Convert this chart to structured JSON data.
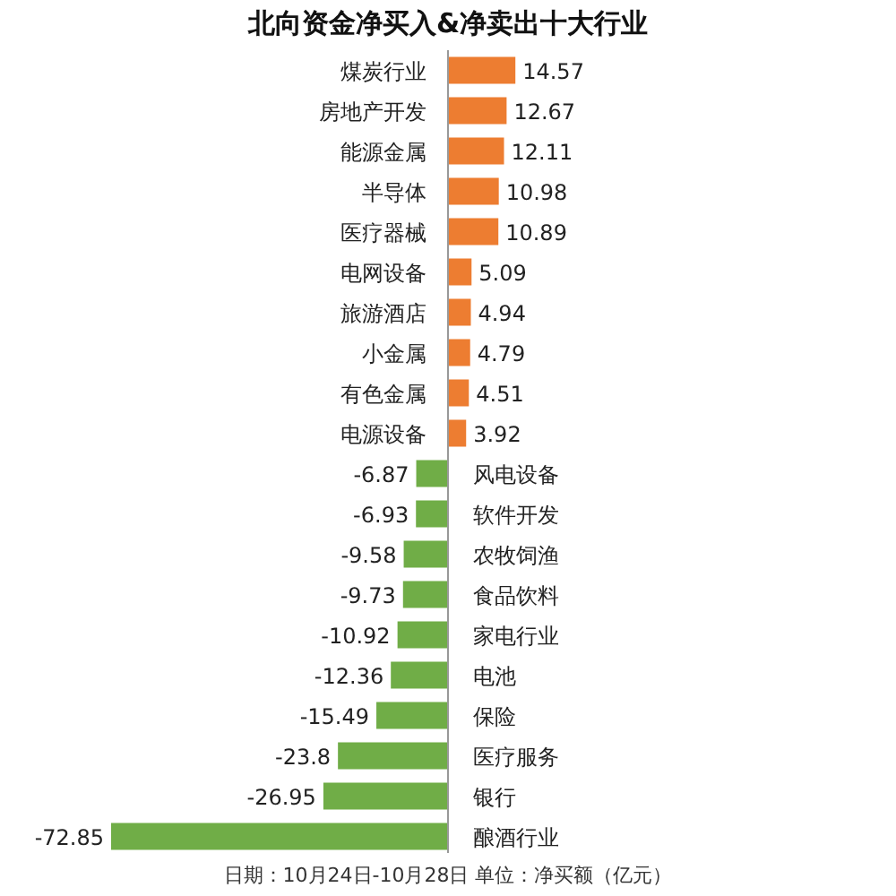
{
  "chart_data": {
    "type": "bar",
    "orientation": "horizontal",
    "title": "北向资金净买入&净卖出十大行业",
    "categories": [
      "煤炭行业",
      "房地产开发",
      "能源金属",
      "半导体",
      "医疗器械",
      "电网设备",
      "旅游酒店",
      "小金属",
      "有色金属",
      "电源设备",
      "风电设备",
      "软件开发",
      "农牧饲渔",
      "食品饮料",
      "家电行业",
      "电池",
      "保险",
      "医疗服务",
      "银行",
      "酿酒行业"
    ],
    "values": [
      14.57,
      12.67,
      12.11,
      10.98,
      10.89,
      5.09,
      4.94,
      4.79,
      4.51,
      3.92,
      -6.87,
      -6.93,
      -9.58,
      -9.73,
      -10.92,
      -12.36,
      -15.49,
      -23.8,
      -26.95,
      -72.85
    ],
    "colors": [
      "#ed7d31",
      "#ed7d31",
      "#ed7d31",
      "#ed7d31",
      "#ed7d31",
      "#ed7d31",
      "#ed7d31",
      "#ed7d31",
      "#ed7d31",
      "#ed7d31",
      "#70ad47",
      "#70ad47",
      "#70ad47",
      "#70ad47",
      "#70ad47",
      "#70ad47",
      "#70ad47",
      "#70ad47",
      "#70ad47",
      "#70ad47"
    ],
    "data_labels": true,
    "annotations": [
      "日期：10月24日-10月28日 单位：净买额（亿元）"
    ]
  }
}
